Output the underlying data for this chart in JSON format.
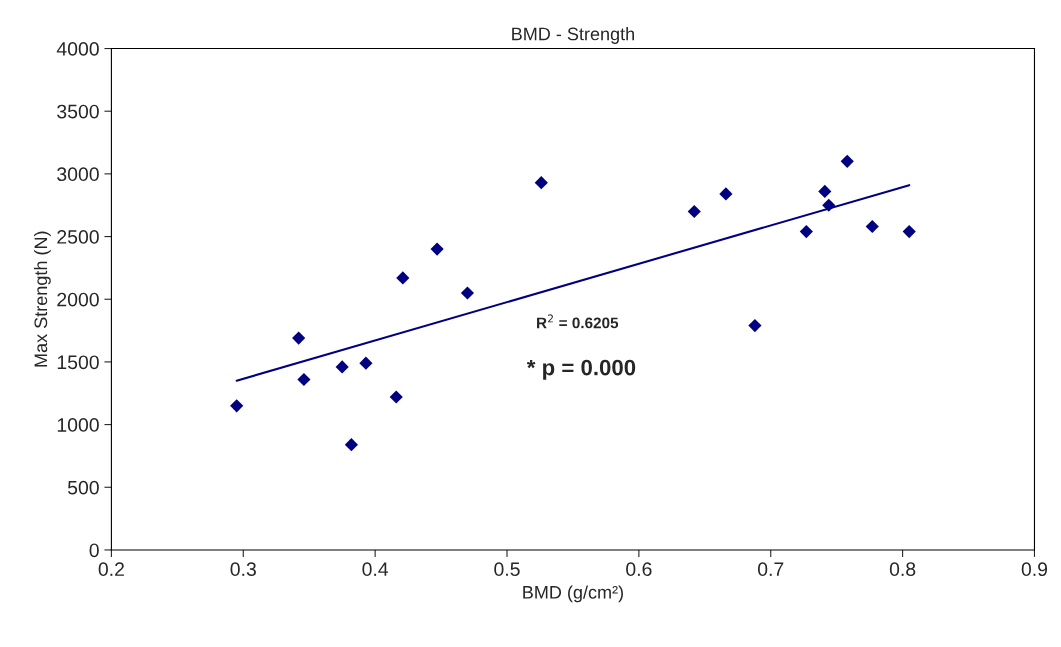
{
  "chart_data": {
    "type": "scatter",
    "title": "BMD - Strength",
    "xlabel": "BMD (g/cm²)",
    "ylabel": "Max Strength (N)",
    "xlim": [
      0.2,
      0.9
    ],
    "xticks": [
      0.2,
      0.3,
      0.4,
      0.5,
      0.6,
      0.7,
      0.8,
      0.9
    ],
    "ylim": [
      0,
      4000
    ],
    "yticks": [
      0,
      500,
      1000,
      1500,
      2000,
      2500,
      3000,
      3500,
      4000
    ],
    "grid": false,
    "legend": false,
    "series": [
      {
        "marker": "diamond",
        "color": "#000080",
        "x": [
          0.295,
          0.342,
          0.346,
          0.375,
          0.382,
          0.393,
          0.416,
          0.421,
          0.447,
          0.47,
          0.526,
          0.642,
          0.666,
          0.688,
          0.727,
          0.741,
          0.744,
          0.758,
          0.777,
          0.805
        ],
        "values": [
          1150,
          1690,
          1360,
          1460,
          840,
          1490,
          1220,
          2170,
          2400,
          2050,
          2930,
          2700,
          2840,
          1790,
          2540,
          2860,
          2750,
          3100,
          2580,
          2540
        ]
      },
      {
        "type": "line",
        "marker": "none",
        "color": "#000080",
        "line_style": "solid",
        "x": [
          0.295,
          0.805
        ],
        "values": [
          1350,
          2910
        ]
      }
    ],
    "annotations": [
      "R$^{2}$ = 0.6205",
      "* p = 0.000"
    ]
  }
}
